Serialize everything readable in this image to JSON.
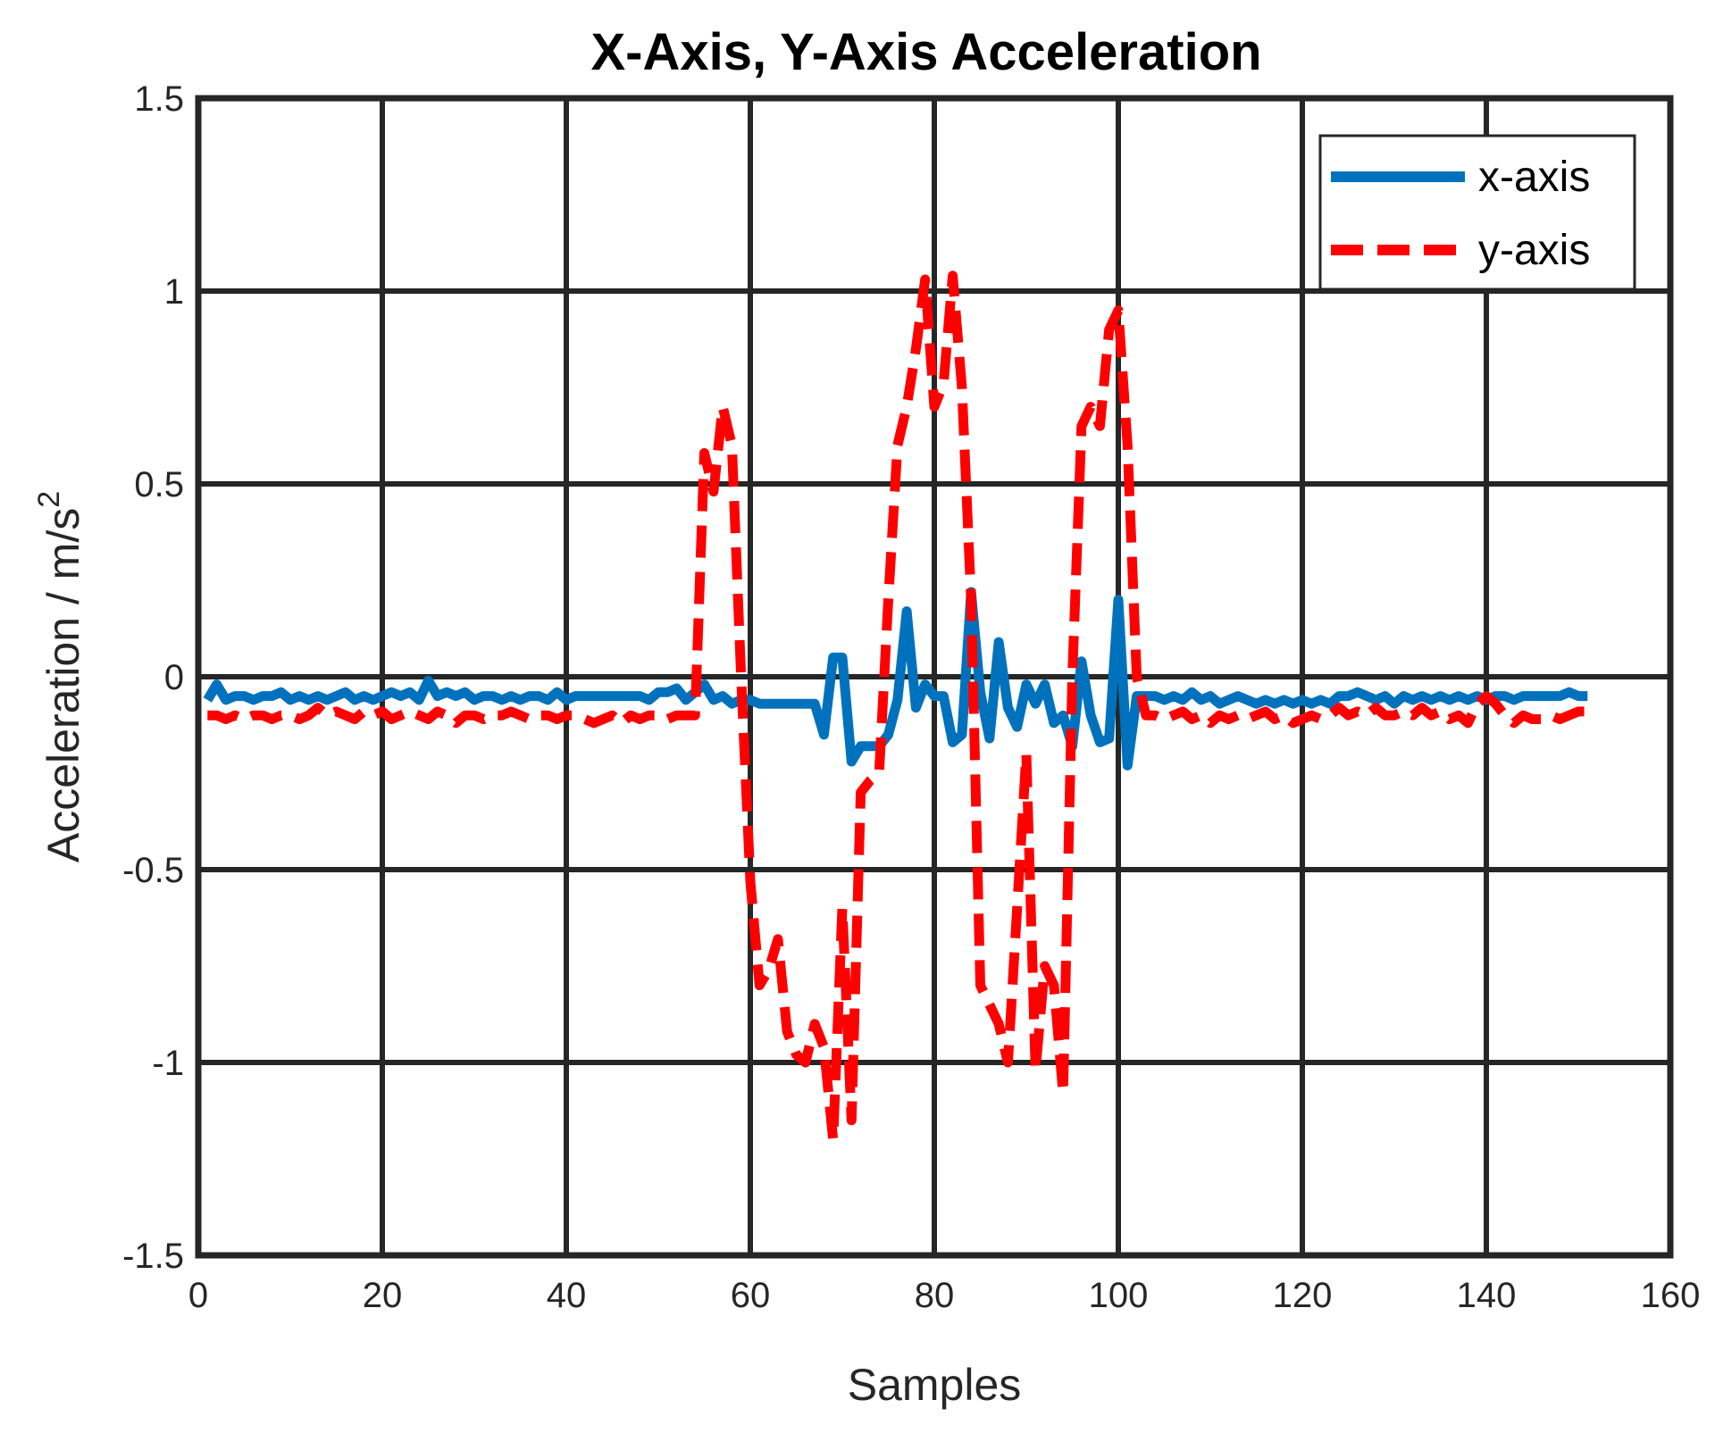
{
  "chart_data": {
    "type": "line",
    "title": "X-Axis, Y-Axis Acceleration",
    "xlabel": "Samples",
    "ylabel": "Acceleration / m/s",
    "ylabel_superscript": "2",
    "xlim": [
      0,
      160
    ],
    "ylim": [
      -1.5,
      1.5
    ],
    "xticks": [
      0,
      20,
      40,
      60,
      80,
      100,
      120,
      140,
      160
    ],
    "yticks": [
      -1.5,
      -1,
      -0.5,
      0,
      0.5,
      1,
      1.5
    ],
    "xtick_labels": [
      "0",
      "20",
      "40",
      "60",
      "80",
      "100",
      "120",
      "140",
      "160"
    ],
    "ytick_labels": [
      "-1.5",
      "-1",
      "-0.5",
      "0",
      "0.5",
      "1",
      "1.5"
    ],
    "grid": true,
    "legend_position": "top-right",
    "series": [
      {
        "name": "x-axis",
        "color": "#0072BD",
        "style": "solid",
        "points": [
          [
            1,
            -0.06
          ],
          [
            2,
            -0.02
          ],
          [
            3,
            -0.06
          ],
          [
            4,
            -0.05
          ],
          [
            5,
            -0.05
          ],
          [
            6,
            -0.06
          ],
          [
            7,
            -0.05
          ],
          [
            8,
            -0.05
          ],
          [
            9,
            -0.04
          ],
          [
            10,
            -0.06
          ],
          [
            11,
            -0.05
          ],
          [
            12,
            -0.06
          ],
          [
            13,
            -0.05
          ],
          [
            14,
            -0.06
          ],
          [
            15,
            -0.05
          ],
          [
            16,
            -0.04
          ],
          [
            17,
            -0.06
          ],
          [
            18,
            -0.05
          ],
          [
            19,
            -0.06
          ],
          [
            20,
            -0.05
          ],
          [
            21,
            -0.04
          ],
          [
            22,
            -0.05
          ],
          [
            23,
            -0.04
          ],
          [
            24,
            -0.06
          ],
          [
            25,
            -0.01
          ],
          [
            26,
            -0.05
          ],
          [
            27,
            -0.04
          ],
          [
            28,
            -0.05
          ],
          [
            29,
            -0.04
          ],
          [
            30,
            -0.06
          ],
          [
            31,
            -0.05
          ],
          [
            32,
            -0.05
          ],
          [
            33,
            -0.06
          ],
          [
            34,
            -0.05
          ],
          [
            35,
            -0.06
          ],
          [
            36,
            -0.05
          ],
          [
            37,
            -0.05
          ],
          [
            38,
            -0.06
          ],
          [
            39,
            -0.04
          ],
          [
            40,
            -0.06
          ],
          [
            41,
            -0.05
          ],
          [
            42,
            -0.05
          ],
          [
            43,
            -0.05
          ],
          [
            44,
            -0.05
          ],
          [
            45,
            -0.05
          ],
          [
            46,
            -0.05
          ],
          [
            47,
            -0.05
          ],
          [
            48,
            -0.05
          ],
          [
            49,
            -0.06
          ],
          [
            50,
            -0.04
          ],
          [
            51,
            -0.04
          ],
          [
            52,
            -0.03
          ],
          [
            53,
            -0.06
          ],
          [
            54,
            -0.04
          ],
          [
            55,
            -0.02
          ],
          [
            56,
            -0.06
          ],
          [
            57,
            -0.05
          ],
          [
            58,
            -0.07
          ],
          [
            59,
            -0.06
          ],
          [
            60,
            -0.06
          ],
          [
            61,
            -0.07
          ],
          [
            62,
            -0.07
          ],
          [
            63,
            -0.07
          ],
          [
            64,
            -0.07
          ],
          [
            65,
            -0.07
          ],
          [
            66,
            -0.07
          ],
          [
            67,
            -0.07
          ],
          [
            68,
            -0.15
          ],
          [
            69,
            0.05
          ],
          [
            70,
            0.05
          ],
          [
            71,
            -0.22
          ],
          [
            72,
            -0.18
          ],
          [
            73,
            -0.18
          ],
          [
            74,
            -0.18
          ],
          [
            75,
            -0.15
          ],
          [
            76,
            -0.06
          ],
          [
            77,
            0.17
          ],
          [
            78,
            -0.08
          ],
          [
            79,
            -0.02
          ],
          [
            80,
            -0.05
          ],
          [
            81,
            -0.05
          ],
          [
            82,
            -0.17
          ],
          [
            83,
            -0.15
          ],
          [
            84,
            0.22
          ],
          [
            85,
            -0.04
          ],
          [
            86,
            -0.16
          ],
          [
            87,
            0.09
          ],
          [
            88,
            -0.08
          ],
          [
            89,
            -0.13
          ],
          [
            90,
            -0.02
          ],
          [
            91,
            -0.07
          ],
          [
            92,
            -0.02
          ],
          [
            93,
            -0.12
          ],
          [
            94,
            -0.1
          ],
          [
            95,
            -0.18
          ],
          [
            96,
            0.04
          ],
          [
            97,
            -0.1
          ],
          [
            98,
            -0.17
          ],
          [
            99,
            -0.16
          ],
          [
            100,
            0.2
          ],
          [
            101,
            -0.23
          ],
          [
            102,
            -0.05
          ],
          [
            103,
            -0.05
          ],
          [
            104,
            -0.05
          ],
          [
            105,
            -0.06
          ],
          [
            106,
            -0.05
          ],
          [
            107,
            -0.06
          ],
          [
            108,
            -0.04
          ],
          [
            109,
            -0.06
          ],
          [
            110,
            -0.05
          ],
          [
            111,
            -0.07
          ],
          [
            112,
            -0.06
          ],
          [
            113,
            -0.05
          ],
          [
            114,
            -0.06
          ],
          [
            115,
            -0.07
          ],
          [
            116,
            -0.06
          ],
          [
            117,
            -0.07
          ],
          [
            118,
            -0.06
          ],
          [
            119,
            -0.07
          ],
          [
            120,
            -0.06
          ],
          [
            121,
            -0.07
          ],
          [
            122,
            -0.06
          ],
          [
            123,
            -0.07
          ],
          [
            124,
            -0.05
          ],
          [
            125,
            -0.05
          ],
          [
            126,
            -0.04
          ],
          [
            127,
            -0.05
          ],
          [
            128,
            -0.06
          ],
          [
            129,
            -0.05
          ],
          [
            130,
            -0.07
          ],
          [
            131,
            -0.05
          ],
          [
            132,
            -0.06
          ],
          [
            133,
            -0.05
          ],
          [
            134,
            -0.06
          ],
          [
            135,
            -0.05
          ],
          [
            136,
            -0.06
          ],
          [
            137,
            -0.05
          ],
          [
            138,
            -0.06
          ],
          [
            139,
            -0.05
          ],
          [
            140,
            -0.06
          ],
          [
            141,
            -0.05
          ],
          [
            142,
            -0.05
          ],
          [
            143,
            -0.06
          ],
          [
            144,
            -0.05
          ],
          [
            145,
            -0.05
          ],
          [
            146,
            -0.05
          ],
          [
            147,
            -0.05
          ],
          [
            148,
            -0.05
          ],
          [
            149,
            -0.04
          ],
          [
            150,
            -0.05
          ],
          [
            151,
            -0.05
          ]
        ]
      },
      {
        "name": "y-axis",
        "color": "#FF0000",
        "style": "dashed",
        "points": [
          [
            1,
            -0.1
          ],
          [
            2,
            -0.1
          ],
          [
            3,
            -0.11
          ],
          [
            4,
            -0.1
          ],
          [
            5,
            -0.11
          ],
          [
            6,
            -0.1
          ],
          [
            7,
            -0.1
          ],
          [
            8,
            -0.11
          ],
          [
            9,
            -0.1
          ],
          [
            10,
            -0.1
          ],
          [
            11,
            -0.11
          ],
          [
            12,
            -0.1
          ],
          [
            13,
            -0.08
          ],
          [
            14,
            -0.1
          ],
          [
            15,
            -0.09
          ],
          [
            16,
            -0.1
          ],
          [
            17,
            -0.11
          ],
          [
            18,
            -0.09
          ],
          [
            19,
            -0.1
          ],
          [
            20,
            -0.09
          ],
          [
            21,
            -0.11
          ],
          [
            22,
            -0.1
          ],
          [
            23,
            -0.09
          ],
          [
            24,
            -0.1
          ],
          [
            25,
            -0.11
          ],
          [
            26,
            -0.09
          ],
          [
            27,
            -0.1
          ],
          [
            28,
            -0.12
          ],
          [
            29,
            -0.1
          ],
          [
            30,
            -0.1
          ],
          [
            31,
            -0.11
          ],
          [
            32,
            -0.1
          ],
          [
            33,
            -0.1
          ],
          [
            34,
            -0.09
          ],
          [
            35,
            -0.1
          ],
          [
            36,
            -0.11
          ],
          [
            37,
            -0.1
          ],
          [
            38,
            -0.1
          ],
          [
            39,
            -0.11
          ],
          [
            40,
            -0.1
          ],
          [
            41,
            -0.1
          ],
          [
            42,
            -0.11
          ],
          [
            43,
            -0.12
          ],
          [
            44,
            -0.11
          ],
          [
            45,
            -0.1
          ],
          [
            46,
            -0.12
          ],
          [
            47,
            -0.1
          ],
          [
            48,
            -0.11
          ],
          [
            49,
            -0.1
          ],
          [
            50,
            -0.1
          ],
          [
            51,
            -0.11
          ],
          [
            52,
            -0.1
          ],
          [
            53,
            -0.1
          ],
          [
            54,
            -0.1
          ],
          [
            55,
            0.58
          ],
          [
            56,
            0.48
          ],
          [
            57,
            0.7
          ],
          [
            58,
            0.6
          ],
          [
            59,
            0.0
          ],
          [
            60,
            -0.53
          ],
          [
            61,
            -0.8
          ],
          [
            62,
            -0.76
          ],
          [
            63,
            -0.68
          ],
          [
            64,
            -0.92
          ],
          [
            65,
            -0.98
          ],
          [
            66,
            -1.0
          ],
          [
            67,
            -0.9
          ],
          [
            68,
            -0.96
          ],
          [
            69,
            -1.2
          ],
          [
            70,
            -0.6
          ],
          [
            71,
            -1.15
          ],
          [
            72,
            -0.3
          ],
          [
            73,
            -0.27
          ],
          [
            74,
            -0.25
          ],
          [
            75,
            0.2
          ],
          [
            76,
            0.6
          ],
          [
            77,
            0.7
          ],
          [
            78,
            0.85
          ],
          [
            79,
            1.03
          ],
          [
            80,
            0.7
          ],
          [
            81,
            0.76
          ],
          [
            82,
            1.04
          ],
          [
            83,
            0.75
          ],
          [
            84,
            0.2
          ],
          [
            85,
            -0.8
          ],
          [
            86,
            -0.85
          ],
          [
            87,
            -0.9
          ],
          [
            88,
            -1.0
          ],
          [
            89,
            -0.6
          ],
          [
            90,
            -0.2
          ],
          [
            91,
            -1.02
          ],
          [
            92,
            -0.75
          ],
          [
            93,
            -0.8
          ],
          [
            94,
            -1.08
          ],
          [
            95,
            0.0
          ],
          [
            96,
            0.65
          ],
          [
            97,
            0.7
          ],
          [
            98,
            0.65
          ],
          [
            99,
            0.9
          ],
          [
            100,
            0.95
          ],
          [
            101,
            0.6
          ],
          [
            102,
            0.0
          ],
          [
            103,
            -0.1
          ],
          [
            104,
            -0.1
          ],
          [
            105,
            -0.11
          ],
          [
            106,
            -0.1
          ],
          [
            107,
            -0.09
          ],
          [
            108,
            -0.11
          ],
          [
            109,
            -0.1
          ],
          [
            110,
            -0.12
          ],
          [
            111,
            -0.1
          ],
          [
            112,
            -0.11
          ],
          [
            113,
            -0.1
          ],
          [
            114,
            -0.11
          ],
          [
            115,
            -0.1
          ],
          [
            116,
            -0.09
          ],
          [
            117,
            -0.11
          ],
          [
            118,
            -0.1
          ],
          [
            119,
            -0.12
          ],
          [
            120,
            -0.11
          ],
          [
            121,
            -0.1
          ],
          [
            122,
            -0.11
          ],
          [
            123,
            -0.1
          ],
          [
            124,
            -0.08
          ],
          [
            125,
            -0.1
          ],
          [
            126,
            -0.09
          ],
          [
            127,
            -0.1
          ],
          [
            128,
            -0.08
          ],
          [
            129,
            -0.1
          ],
          [
            130,
            -0.1
          ],
          [
            131,
            -0.09
          ],
          [
            132,
            -0.1
          ],
          [
            133,
            -0.08
          ],
          [
            134,
            -0.1
          ],
          [
            135,
            -0.09
          ],
          [
            136,
            -0.11
          ],
          [
            137,
            -0.1
          ],
          [
            138,
            -0.12
          ],
          [
            139,
            -0.07
          ],
          [
            140,
            -0.05
          ],
          [
            141,
            -0.07
          ],
          [
            142,
            -0.1
          ],
          [
            143,
            -0.12
          ],
          [
            144,
            -0.1
          ],
          [
            145,
            -0.11
          ],
          [
            146,
            -0.11
          ],
          [
            147,
            -0.1
          ],
          [
            148,
            -0.11
          ],
          [
            149,
            -0.1
          ],
          [
            150,
            -0.09
          ],
          [
            151,
            -0.09
          ]
        ]
      }
    ]
  }
}
